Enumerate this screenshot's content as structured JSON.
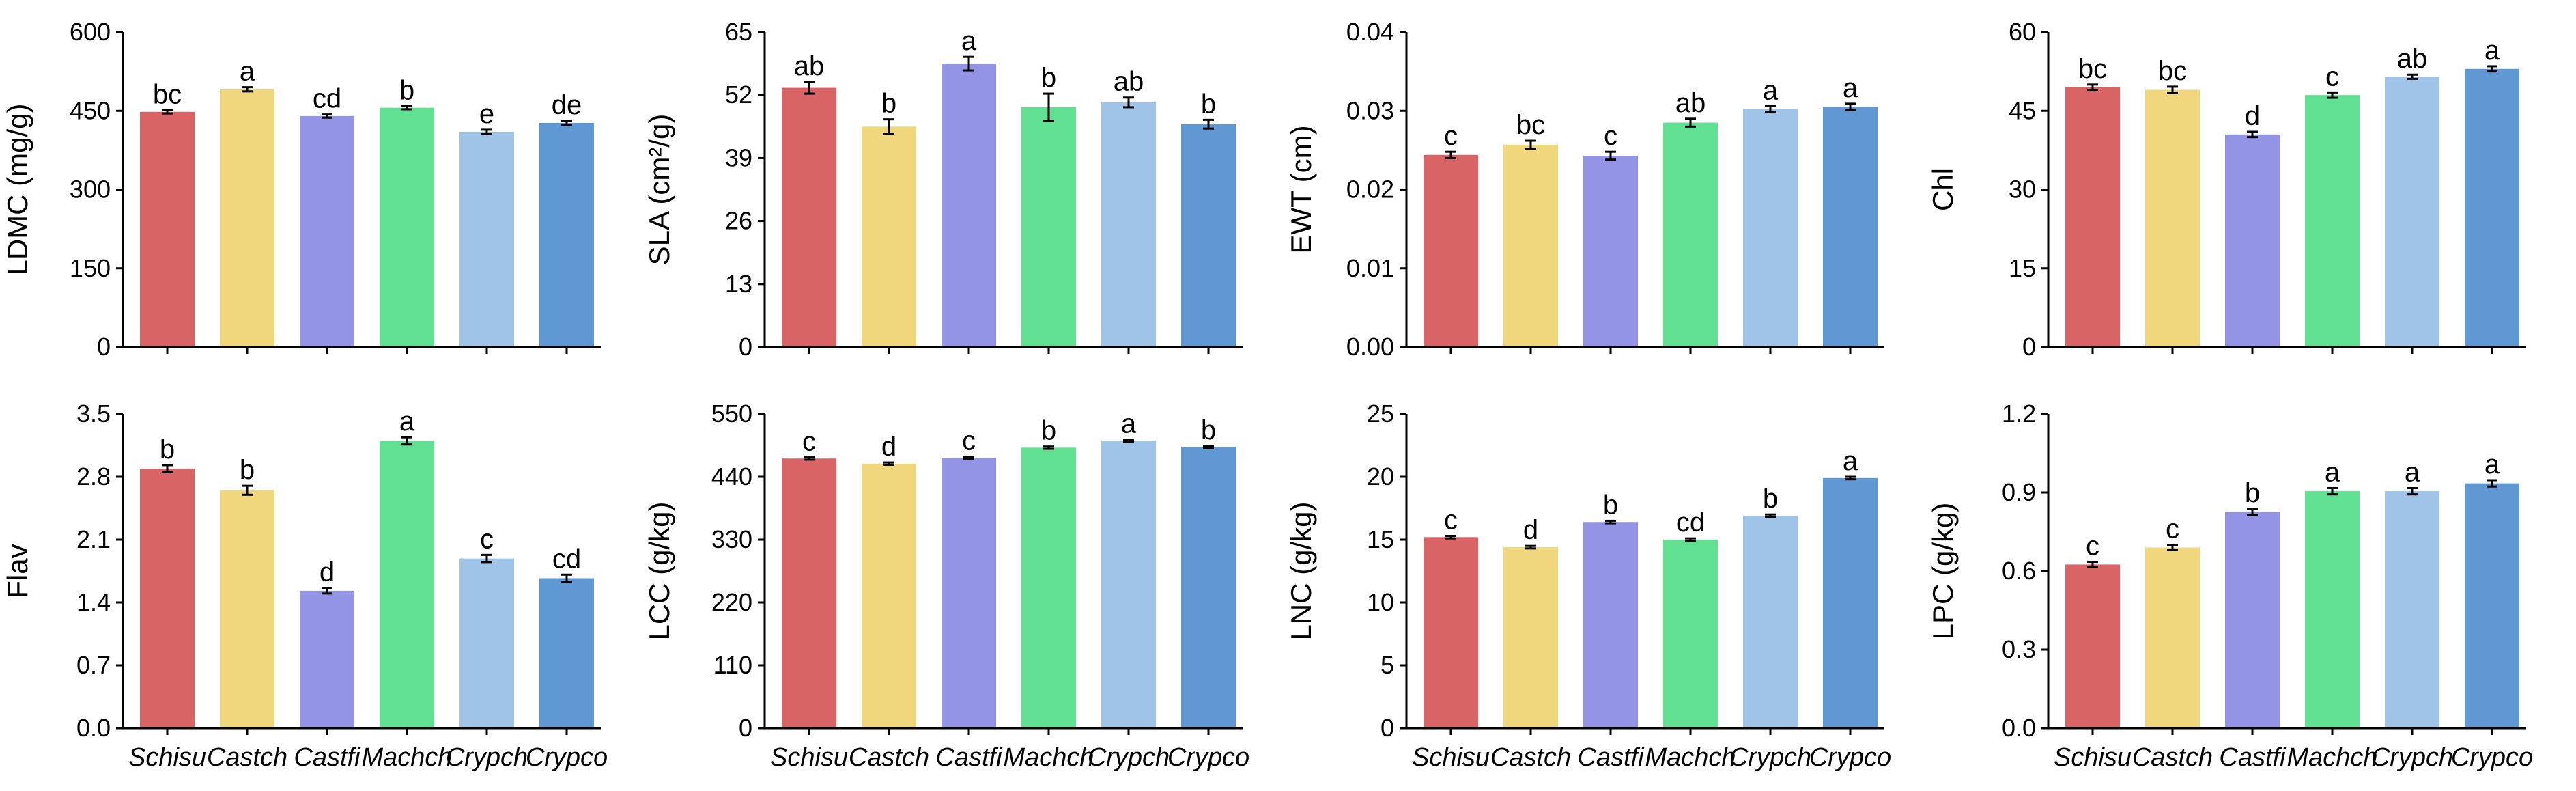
{
  "colors": {
    "Schisu": "#d96466",
    "Castch": "#f0d77e",
    "Castfi": "#9394e5",
    "Machch": "#62e092",
    "Crypch": "#9fc4e8",
    "Crypco": "#6098d3",
    "axis": "#000000"
  },
  "chart_data": [
    {
      "type": "bar",
      "ylabel": "LDMC (mg/g)",
      "categories": [
        "Schisu",
        "Castch",
        "Castfi",
        "Machch",
        "Crypch",
        "Crypco"
      ],
      "values": [
        448,
        491,
        440,
        456,
        410,
        427
      ],
      "errors": [
        3,
        4,
        3,
        3,
        4,
        4
      ],
      "letters": [
        "bc",
        "a",
        "cd",
        "b",
        "e",
        "de"
      ],
      "yticks": [
        0,
        150,
        300,
        450,
        600
      ],
      "ytick_labels": [
        "0",
        "150",
        "300",
        "450",
        "600"
      ],
      "ylim": [
        0,
        600
      ],
      "show_xlabels": false
    },
    {
      "type": "bar",
      "ylabel": "SLA (cm²/g)",
      "categories": [
        "Schisu",
        "Castch",
        "Castfi",
        "Machch",
        "Crypch",
        "Crypco"
      ],
      "values": [
        53.5,
        45.5,
        58.5,
        49.5,
        50.5,
        46
      ],
      "errors": [
        1.2,
        1.5,
        1.4,
        2.8,
        1.0,
        0.9
      ],
      "letters": [
        "ab",
        "b",
        "a",
        "b",
        "ab",
        "b"
      ],
      "yticks": [
        0,
        13,
        26,
        39,
        52,
        65
      ],
      "ytick_labels": [
        "0",
        "13",
        "26",
        "39",
        "52",
        "65"
      ],
      "ylim": [
        0,
        65
      ],
      "show_xlabels": false
    },
    {
      "type": "bar",
      "ylabel": "EWT (cm)",
      "categories": [
        "Schisu",
        "Castch",
        "Castfi",
        "Machch",
        "Crypch",
        "Crypco"
      ],
      "values": [
        0.0244,
        0.0257,
        0.0243,
        0.0285,
        0.0302,
        0.0305
      ],
      "errors": [
        0.0004,
        0.0005,
        0.0005,
        0.0005,
        0.0004,
        0.0004
      ],
      "letters": [
        "c",
        "bc",
        "c",
        "ab",
        "a",
        "a"
      ],
      "yticks": [
        0,
        0.01,
        0.02,
        0.03,
        0.04
      ],
      "ytick_labels": [
        "0.00",
        "0.01",
        "0.02",
        "0.03",
        "0.04"
      ],
      "ylim": [
        0,
        0.04
      ],
      "show_xlabels": false
    },
    {
      "type": "bar",
      "ylabel": "Chl",
      "categories": [
        "Schisu",
        "Castch",
        "Castfi",
        "Machch",
        "Crypch",
        "Crypco"
      ],
      "values": [
        49.5,
        49,
        40.5,
        48,
        51.5,
        53
      ],
      "errors": [
        0.5,
        0.6,
        0.5,
        0.5,
        0.4,
        0.5
      ],
      "letters": [
        "bc",
        "bc",
        "d",
        "c",
        "ab",
        "a"
      ],
      "yticks": [
        0,
        15,
        30,
        45,
        60
      ],
      "ytick_labels": [
        "0",
        "15",
        "30",
        "45",
        "60"
      ],
      "ylim": [
        0,
        60
      ],
      "show_xlabels": false
    },
    {
      "type": "bar",
      "ylabel": "Flav",
      "categories": [
        "Schisu",
        "Castch",
        "Castfi",
        "Machch",
        "Crypch",
        "Crypco"
      ],
      "values": [
        2.89,
        2.65,
        1.53,
        3.2,
        1.89,
        1.67
      ],
      "errors": [
        0.04,
        0.05,
        0.03,
        0.04,
        0.04,
        0.04
      ],
      "letters": [
        "b",
        "b",
        "d",
        "a",
        "c",
        "cd"
      ],
      "yticks": [
        0,
        0.7,
        1.4,
        2.1,
        2.8,
        3.5
      ],
      "ytick_labels": [
        "0.0",
        "0.7",
        "1.4",
        "2.1",
        "2.8",
        "3.5"
      ],
      "ylim": [
        0,
        3.5
      ],
      "show_xlabels": true
    },
    {
      "type": "bar",
      "ylabel": "LCC (g/kg)",
      "categories": [
        "Schisu",
        "Castch",
        "Castfi",
        "Machch",
        "Crypch",
        "Crypco"
      ],
      "values": [
        472,
        463,
        473,
        491,
        503,
        492
      ],
      "errors": [
        2,
        2,
        2,
        2,
        2,
        2
      ],
      "letters": [
        "c",
        "d",
        "c",
        "b",
        "a",
        "b"
      ],
      "yticks": [
        0,
        110,
        220,
        330,
        440,
        550
      ],
      "ytick_labels": [
        "0",
        "110",
        "220",
        "330",
        "440",
        "550"
      ],
      "ylim": [
        0,
        550
      ],
      "show_xlabels": true
    },
    {
      "type": "bar",
      "ylabel": "LNC (g/kg)",
      "categories": [
        "Schisu",
        "Castch",
        "Castfi",
        "Machch",
        "Crypch",
        "Crypco"
      ],
      "values": [
        15.2,
        14.4,
        16.4,
        15,
        16.9,
        19.9
      ],
      "errors": [
        0.1,
        0.1,
        0.1,
        0.1,
        0.1,
        0.1
      ],
      "letters": [
        "c",
        "d",
        "b",
        "cd",
        "b",
        "a"
      ],
      "yticks": [
        0,
        5,
        10,
        15,
        20,
        25
      ],
      "ytick_labels": [
        "0",
        "5",
        "10",
        "15",
        "20",
        "25"
      ],
      "ylim": [
        0,
        25
      ],
      "show_xlabels": true
    },
    {
      "type": "bar",
      "ylabel": "LPC (g/kg)",
      "categories": [
        "Schisu",
        "Castch",
        "Castfi",
        "Machch",
        "Crypch",
        "Crypco"
      ],
      "values": [
        0.625,
        0.69,
        0.825,
        0.905,
        0.905,
        0.935
      ],
      "errors": [
        0.01,
        0.01,
        0.012,
        0.012,
        0.012,
        0.012
      ],
      "letters": [
        "c",
        "c",
        "b",
        "a",
        "a",
        "a"
      ],
      "yticks": [
        0,
        0.3,
        0.6,
        0.9,
        1.2
      ],
      "ytick_labels": [
        "0.0",
        "0.3",
        "0.6",
        "0.9",
        "1.2"
      ],
      "ylim": [
        0,
        1.2
      ],
      "show_xlabels": true
    }
  ]
}
